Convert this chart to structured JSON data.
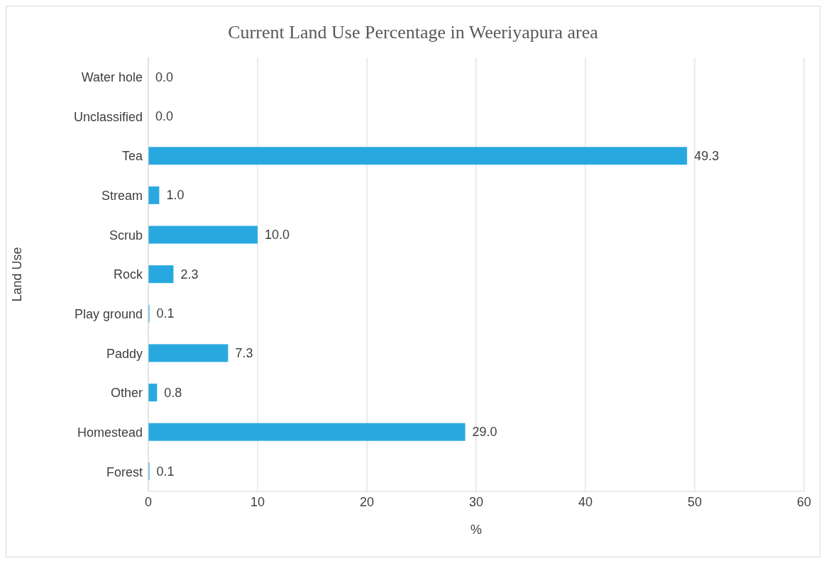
{
  "chart_data": {
    "type": "bar",
    "orientation": "horizontal",
    "title": "Current Land Use Percentage in Weeriyapura area",
    "xlabel": "%",
    "ylabel": "Land Use",
    "categories": [
      "Water hole",
      "Unclassified",
      "Tea",
      "Stream",
      "Scrub",
      "Rock",
      "Play ground",
      "Paddy",
      "Other",
      "Homestead",
      "Forest"
    ],
    "values": [
      0,
      0,
      49.3,
      1,
      10,
      2.3,
      0.1,
      7.3,
      0.8,
      29,
      0.1
    ],
    "value_labels": [
      "0.0",
      "0.0",
      "49.3",
      "1.0",
      "10.0",
      "2.3",
      "0.1",
      "7.3",
      "0.8",
      "29.0",
      "0.1"
    ],
    "color": "#29a8e0",
    "xlim": [
      0,
      60
    ],
    "xticks": [
      0,
      10,
      20,
      30,
      40,
      50,
      60
    ],
    "grid": "x"
  }
}
